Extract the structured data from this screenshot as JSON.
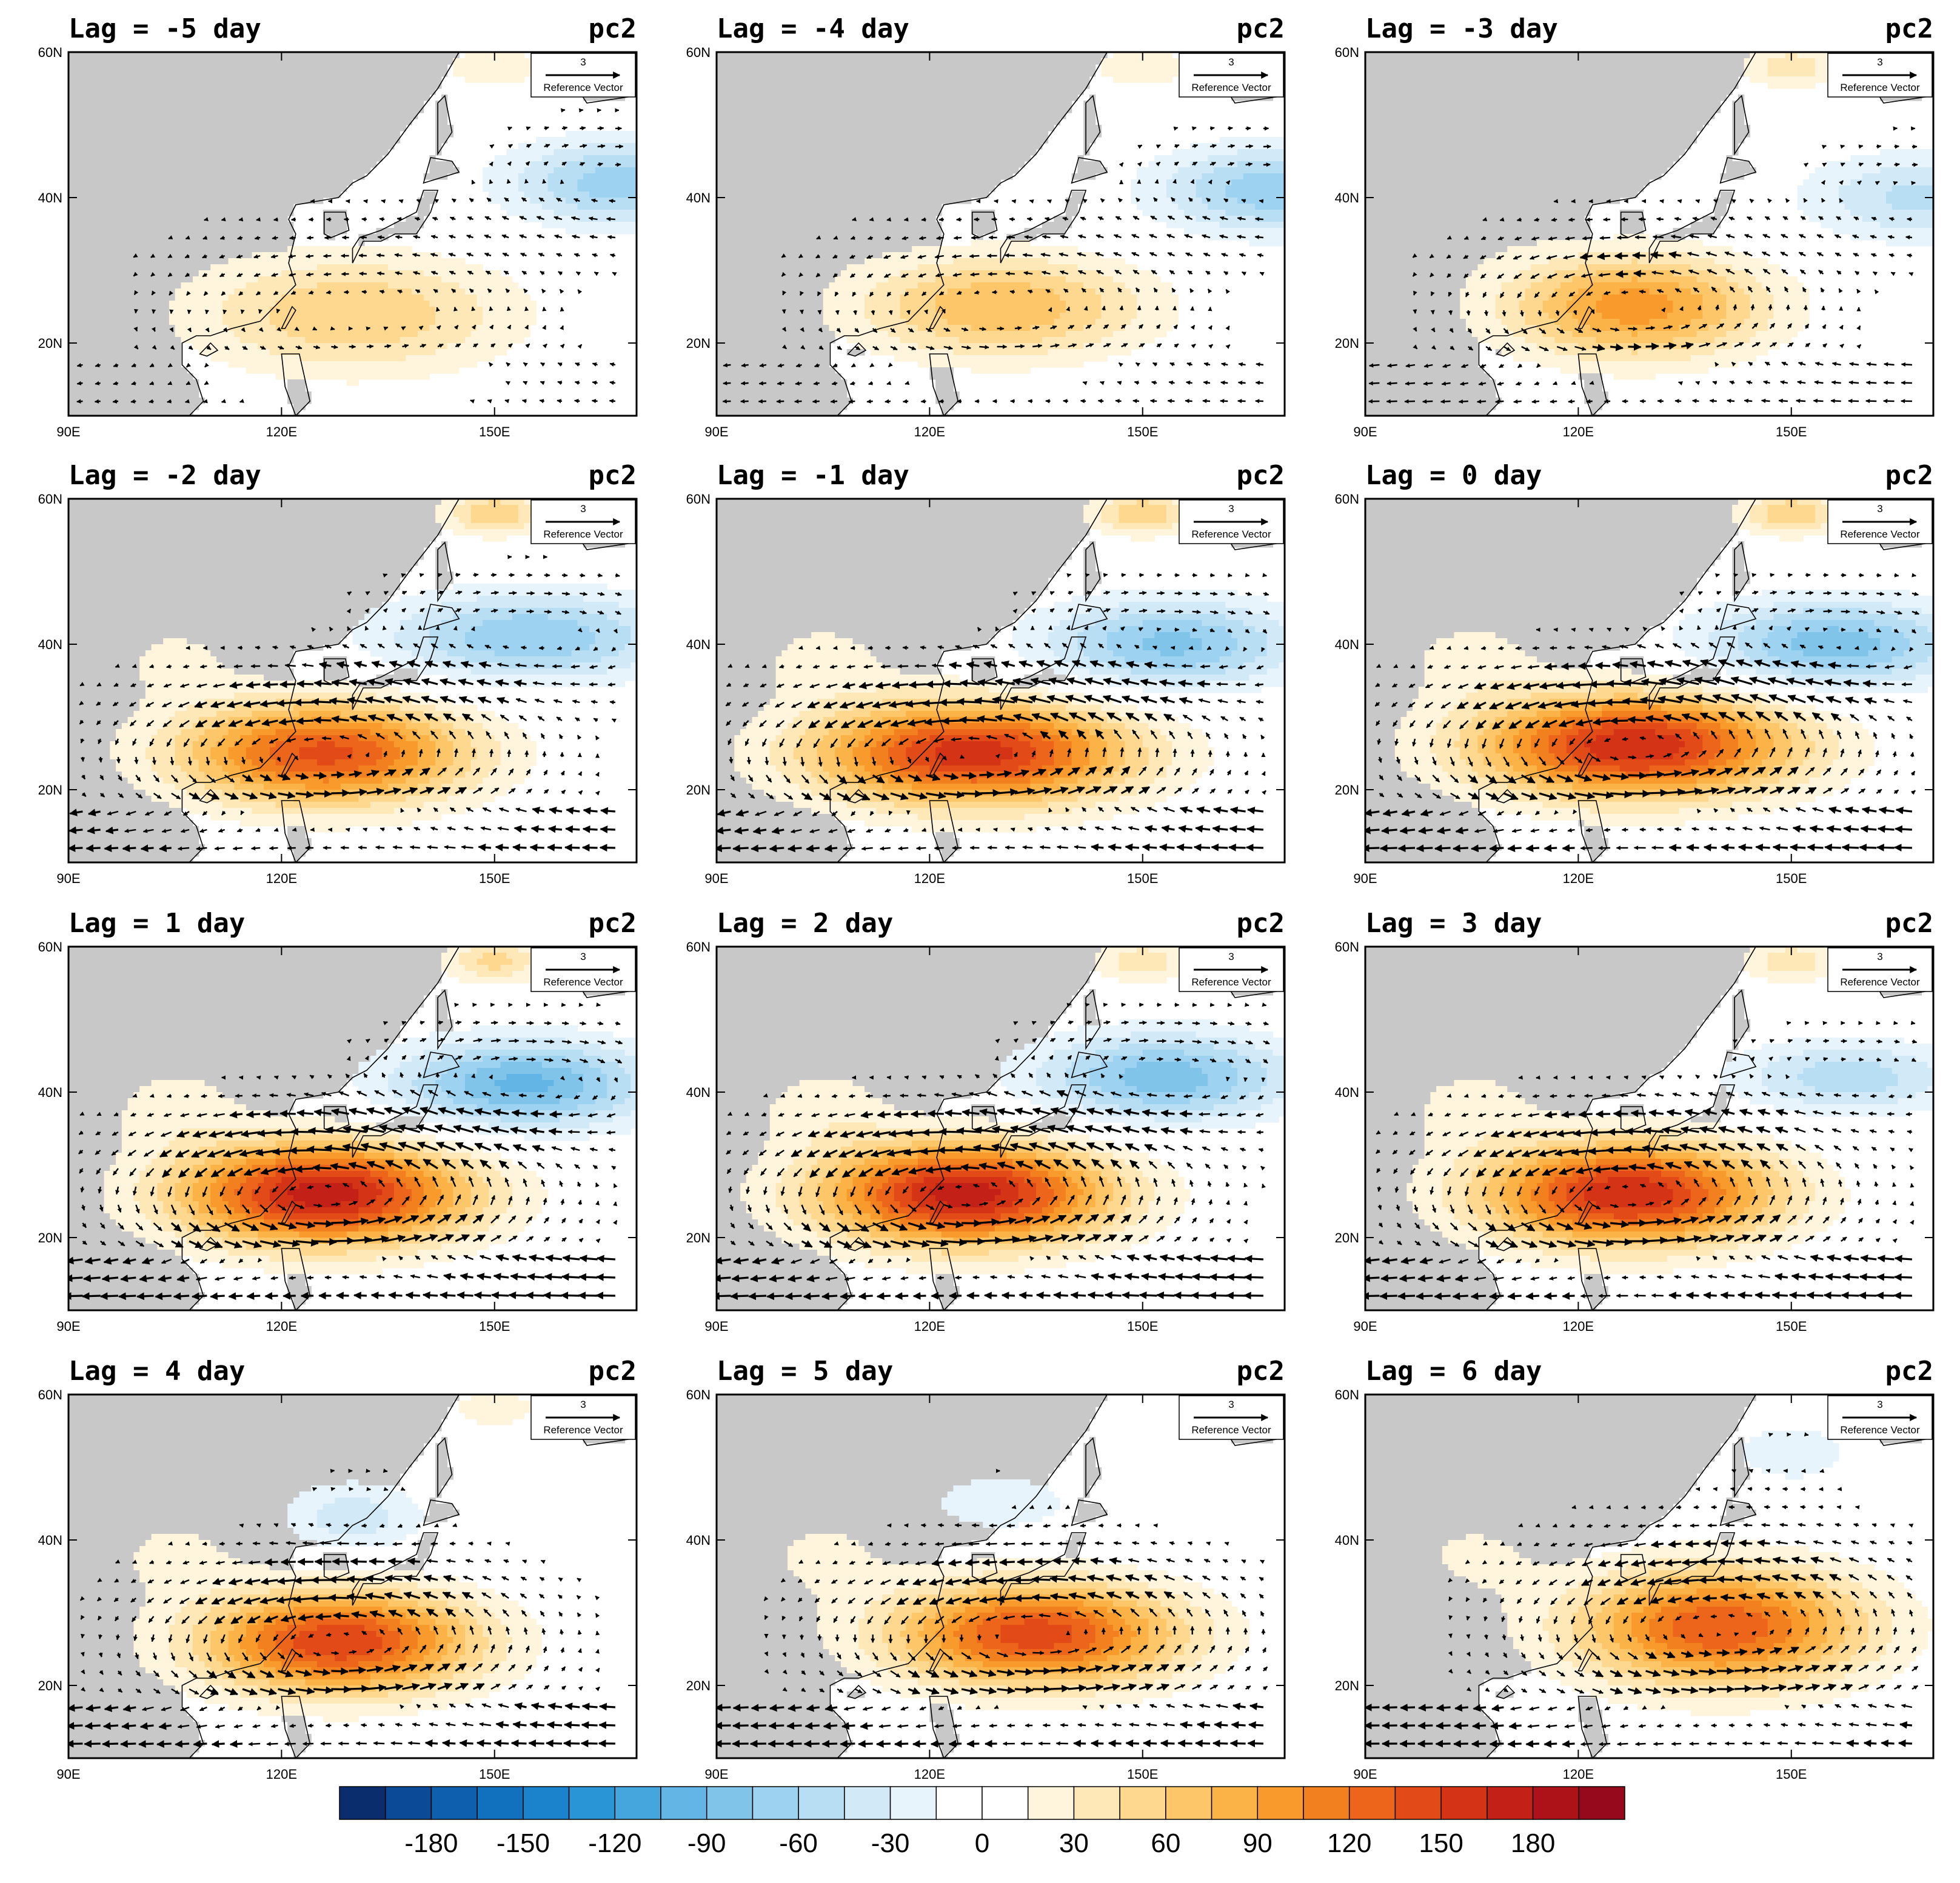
{
  "figure": {
    "panel_rows": 4,
    "panel_cols": 3,
    "panel_tag": "pc2",
    "land_color": "#c8c8c8",
    "ocean_color": "#ffffff",
    "reference_vector": {
      "magnitude": "3",
      "label": "Reference Vector"
    }
  },
  "axes": {
    "lon_ticks": [
      "90E",
      "120E",
      "150E"
    ],
    "lat_ticks": [
      "60N",
      "40N",
      "20N"
    ]
  },
  "panels": [
    {
      "title": "Lag = -5 day",
      "high_amp": 60,
      "high_lon": 130,
      "high_lat": 24,
      "high_rx": 22,
      "high_ry": 8,
      "low_amp": -70,
      "low_lon": 168,
      "low_lat": 42,
      "low_rx": 16,
      "low_ry": 6,
      "ne_amp": 30
    },
    {
      "title": "Lag = -4 day",
      "high_amp": 75,
      "high_lon": 130,
      "high_lat": 25,
      "high_rx": 20,
      "high_ry": 7,
      "low_amp": -70,
      "low_lon": 168,
      "low_lat": 41,
      "low_rx": 16,
      "low_ry": 6,
      "ne_amp": 30
    },
    {
      "title": "Lag = -3 day",
      "high_amp": 100,
      "high_lon": 128,
      "high_lat": 25,
      "high_rx": 18,
      "high_ry": 7,
      "low_amp": -50,
      "low_lon": 168,
      "low_lat": 40,
      "low_rx": 16,
      "low_ry": 6,
      "ne_amp": 40
    },
    {
      "title": "Lag = -2 day",
      "high_amp": 140,
      "high_lon": 126,
      "high_lat": 25,
      "high_rx": 20,
      "high_ry": 7,
      "low_amp": -75,
      "low_lon": 155,
      "low_lat": 41,
      "low_rx": 20,
      "low_ry": 6,
      "ne_amp": 60
    },
    {
      "title": "Lag = -1 day",
      "high_amp": 160,
      "high_lon": 126,
      "high_lat": 25,
      "high_rx": 22,
      "high_ry": 7,
      "low_amp": -80,
      "low_lon": 154,
      "low_lat": 40,
      "low_rx": 18,
      "low_ry": 6,
      "ne_amp": 60
    },
    {
      "title": "Lag = 0 day",
      "high_amp": 165,
      "high_lon": 128,
      "high_lat": 26,
      "high_rx": 22,
      "high_ry": 7,
      "low_amp": -85,
      "low_lon": 156,
      "low_lat": 40,
      "low_rx": 18,
      "low_ry": 6,
      "ne_amp": 60
    },
    {
      "title": "Lag = 1 day",
      "high_amp": 175,
      "high_lon": 126,
      "high_lat": 26,
      "high_rx": 20,
      "high_ry": 7,
      "low_amp": -95,
      "low_lon": 154,
      "low_lat": 41,
      "low_rx": 18,
      "low_ry": 6,
      "ne_amp": 50
    },
    {
      "title": "Lag = 2 day",
      "high_amp": 175,
      "high_lon": 125,
      "high_lat": 26,
      "high_rx": 20,
      "high_ry": 7,
      "low_amp": -85,
      "low_lon": 153,
      "low_lat": 42,
      "low_rx": 18,
      "low_ry": 6,
      "ne_amp": 40
    },
    {
      "title": "Lag = 3 day",
      "high_amp": 165,
      "high_lon": 127,
      "high_lat": 26,
      "high_rx": 20,
      "high_ry": 7,
      "low_amp": -55,
      "low_lon": 158,
      "low_lat": 42,
      "low_rx": 16,
      "low_ry": 5,
      "ne_amp": 40
    },
    {
      "title": "Lag = 4 day",
      "high_amp": 150,
      "high_lon": 128,
      "high_lat": 26,
      "high_rx": 19,
      "high_ry": 7,
      "low_amp": -40,
      "low_lon": 130,
      "low_lat": 43,
      "low_rx": 10,
      "low_ry": 5,
      "ne_amp": 25
    },
    {
      "title": "Lag = 5 day",
      "high_amp": 145,
      "high_lon": 135,
      "high_lat": 27,
      "high_rx": 20,
      "high_ry": 7,
      "low_amp": -30,
      "low_lon": 130,
      "low_lat": 45,
      "low_rx": 10,
      "low_ry": 4,
      "ne_amp": 0
    },
    {
      "title": "Lag = 6 day",
      "high_amp": 135,
      "high_lon": 140,
      "high_lat": 28,
      "high_rx": 20,
      "high_ry": 8,
      "low_amp": -30,
      "low_lon": 150,
      "low_lat": 52,
      "low_rx": 8,
      "low_ry": 4,
      "ne_amp": 0
    }
  ],
  "colorbar": {
    "levels": [
      -195,
      -180,
      -165,
      -150,
      -135,
      -120,
      -105,
      -90,
      -75,
      -60,
      -45,
      -30,
      -15,
      0,
      15,
      30,
      45,
      60,
      75,
      90,
      105,
      120,
      135,
      150,
      165,
      180,
      195
    ],
    "colors": [
      "#0a2d6e",
      "#0b4a96",
      "#0e5fae",
      "#1271bf",
      "#1a83cc",
      "#2a95d6",
      "#45a6de",
      "#62b5e4",
      "#80c4ea",
      "#9dd2f0",
      "#b8def4",
      "#d2eaf8",
      "#e8f4fb",
      "#ffffff",
      "#ffffff",
      "#fff4dc",
      "#ffe8b8",
      "#fed88e",
      "#fdc668",
      "#fbb246",
      "#f89a2c",
      "#f3801f",
      "#ec651a",
      "#e24a17",
      "#d53316",
      "#c32017",
      "#ae1219",
      "#96091c"
    ],
    "tick_labels": [
      "-180",
      "-150",
      "-120",
      "-90",
      "-60",
      "-30",
      "0",
      "30",
      "60",
      "90",
      "120",
      "150",
      "180"
    ]
  }
}
